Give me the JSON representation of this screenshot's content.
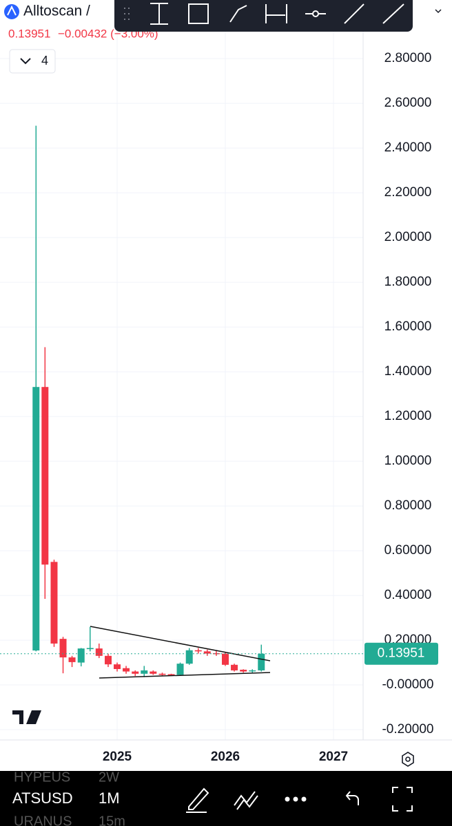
{
  "header": {
    "title": "Alltoscan /",
    "price": "0.13951",
    "change": "−0.00432 (−3.00%)",
    "indicator_count": "4"
  },
  "chart_data": {
    "type": "candlestick",
    "x": [
      2024.25,
      2024.333,
      2024.417,
      2024.5,
      2024.583,
      2024.667,
      2024.75,
      2024.833,
      2024.917,
      2025,
      2025.083,
      2025.167,
      2025.25,
      2025.333,
      2025.417,
      2025.5,
      2025.583,
      2025.667,
      2025.75,
      2025.833,
      2025.917,
      2026,
      2026.083,
      2026.167,
      2026.25,
      2026.333
    ],
    "open": [
      0.154,
      1.332,
      0.55,
      0.206,
      0.123,
      0.1,
      0.16,
      0.163,
      0.13,
      0.092,
      0.075,
      0.06,
      0.05,
      0.06,
      0.05,
      0.048,
      0.045,
      0.095,
      0.155,
      0.15,
      0.142,
      0.14,
      0.09,
      0.068,
      0.062,
      0.065
    ],
    "high": [
      2.5,
      1.51,
      0.56,
      0.215,
      0.13,
      0.165,
      0.26,
      0.185,
      0.14,
      0.1,
      0.085,
      0.065,
      0.085,
      0.065,
      0.055,
      0.05,
      0.1,
      0.165,
      0.165,
      0.158,
      0.155,
      0.145,
      0.095,
      0.07,
      0.07,
      0.18
    ],
    "low": [
      0.15,
      0.385,
      0.17,
      0.052,
      0.08,
      0.083,
      0.15,
      0.12,
      0.08,
      0.06,
      0.05,
      0.04,
      0.035,
      0.045,
      0.04,
      0.04,
      0.042,
      0.09,
      0.14,
      0.13,
      0.13,
      0.085,
      0.06,
      0.055,
      0.055,
      0.06
    ],
    "close": [
      1.332,
      0.538,
      0.185,
      0.123,
      0.102,
      0.163,
      0.165,
      0.13,
      0.092,
      0.071,
      0.06,
      0.05,
      0.065,
      0.05,
      0.045,
      0.045,
      0.095,
      0.155,
      0.15,
      0.14,
      0.14,
      0.09,
      0.065,
      0.06,
      0.065,
      0.13951
    ],
    "up_color": "#22ab94",
    "down_color": "#f23645",
    "last_price": 0.13951,
    "xlim": [
      2023.917,
      2027.274
    ],
    "xticks": [
      2025,
      2026,
      2027
    ],
    "ylim": [
      -0.246,
      3.062
    ],
    "yticks": [
      {
        "value": 2.8,
        "label": "2.80000"
      },
      {
        "value": 2.6,
        "label": "2.60000"
      },
      {
        "value": 2.4,
        "label": "2.40000"
      },
      {
        "value": 2.2,
        "label": "2.20000"
      },
      {
        "value": 2.0,
        "label": "2.00000"
      },
      {
        "value": 1.8,
        "label": "1.80000"
      },
      {
        "value": 1.6,
        "label": "1.60000"
      },
      {
        "value": 1.4,
        "label": "1.40000"
      },
      {
        "value": 1.2,
        "label": "1.20000"
      },
      {
        "value": 1.0,
        "label": "1.00000"
      },
      {
        "value": 0.8,
        "label": "0.80000"
      },
      {
        "value": 0.6,
        "label": "0.60000"
      },
      {
        "value": 0.4,
        "label": "0.40000"
      },
      {
        "value": 0.2,
        "label": "0.20000"
      },
      {
        "value": 0,
        "label": "-0.00000"
      },
      {
        "value": -0.2,
        "label": "-0.20000"
      }
    ],
    "grid": true
  },
  "footer": {
    "symbol": "ATSUSD",
    "interval": "1M",
    "prev_symbol": "HYPEUS",
    "prev_interval": "2W",
    "next_symbol": "URANUS",
    "next_interval": "15m"
  }
}
